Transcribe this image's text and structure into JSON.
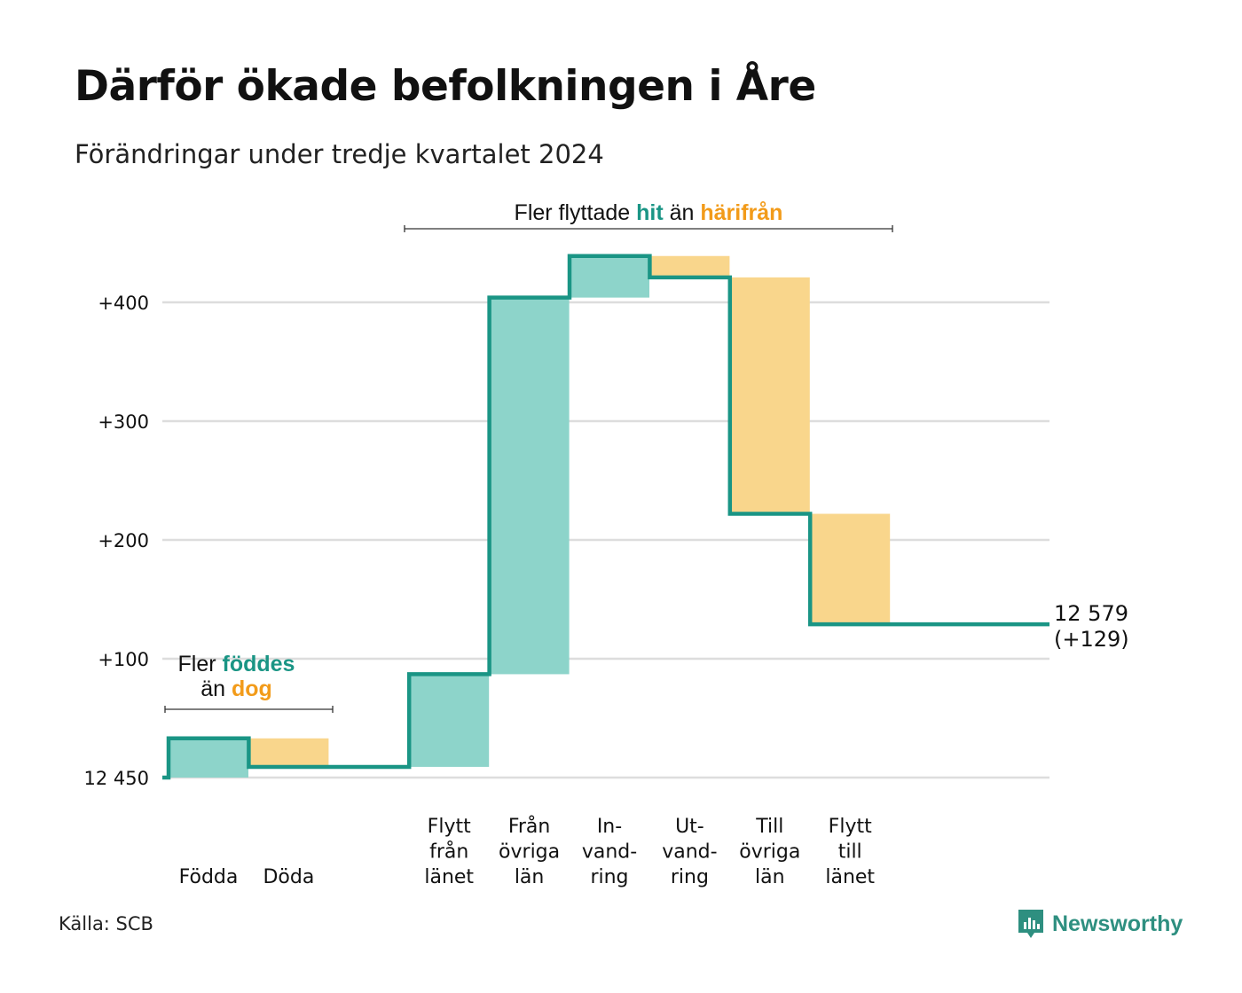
{
  "title": "Därför ökade befolkningen i Åre",
  "subtitle": "Förändringar under tredje kvartalet 2024",
  "source": "Källa: SCB",
  "brand": {
    "name": "Newsworthy",
    "icon": "newsworthy-logo-icon"
  },
  "colors": {
    "increase_fill": "#8dd4ca",
    "decrease_fill": "#f9d68c",
    "step_line": "#1a9585",
    "teal_text": "#1a9585",
    "orange_text": "#f29b1a",
    "grid": "#dddddd"
  },
  "chart_data": {
    "type": "waterfall",
    "title": "Därför ökade befolkningen i Åre",
    "subtitle": "Förändringar under tredje kvartalet 2024",
    "base_value": 12450,
    "base_label": "12 450",
    "ylim": [
      0,
      440
    ],
    "yticks": [
      {
        "value": 100,
        "label": "+100"
      },
      {
        "value": 200,
        "label": "+200"
      },
      {
        "value": 300,
        "label": "+300"
      },
      {
        "value": 400,
        "label": "+400"
      }
    ],
    "grid": true,
    "categories": [
      {
        "lines": [
          "Födda"
        ],
        "start": 0,
        "end": 33,
        "direction": "increase"
      },
      {
        "lines": [
          "Döda"
        ],
        "start": 33,
        "end": 9,
        "direction": "decrease"
      },
      {
        "lines": [],
        "start": 9,
        "end": 9,
        "direction": "none"
      },
      {
        "lines": [
          "Flytt",
          "från",
          "länet"
        ],
        "start": 9,
        "end": 87,
        "direction": "increase"
      },
      {
        "lines": [
          "Från",
          "övriga",
          "län"
        ],
        "start": 87,
        "end": 404,
        "direction": "increase"
      },
      {
        "lines": [
          "In-",
          "vand-",
          "ring"
        ],
        "start": 404,
        "end": 439,
        "direction": "increase"
      },
      {
        "lines": [
          "Ut-",
          "vand-",
          "ring"
        ],
        "start": 439,
        "end": 421,
        "direction": "decrease"
      },
      {
        "lines": [
          "Till",
          "övriga",
          "län"
        ],
        "start": 421,
        "end": 222,
        "direction": "decrease"
      },
      {
        "lines": [
          "Flytt",
          "till",
          "länet"
        ],
        "start": 222,
        "end": 129,
        "direction": "decrease"
      }
    ],
    "final": {
      "value": 12579,
      "change": 129,
      "label_line1": "12 579",
      "label_line2": "(+129)"
    },
    "annotations": [
      {
        "id": "births",
        "line1_prefix": "Fler",
        "line1_highlight": "föddes",
        "line2_prefix": "än",
        "line2_highlight": "dog",
        "from_category": 0,
        "to_category": 1
      },
      {
        "id": "migration",
        "line1_prefix": "Fler flyttade",
        "line1_highlight": "hit",
        "line2_prefix": "än",
        "line2_highlight": "härifrån",
        "from_category": 3,
        "to_category": 8
      }
    ]
  }
}
